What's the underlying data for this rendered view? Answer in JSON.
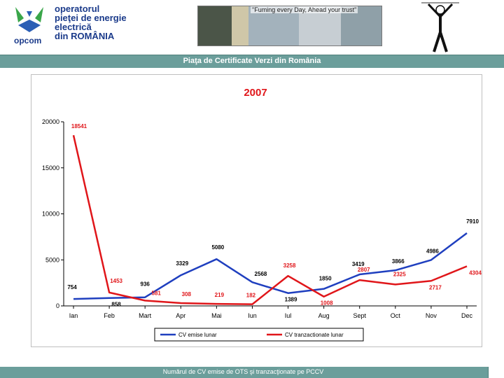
{
  "header": {
    "brand": "opcom",
    "org_lines": [
      "operatorul",
      "pieţei de energie",
      "electrică",
      "din ROMÂNIA"
    ],
    "slogan": "\"Fuming every Day, Ahead your trust\""
  },
  "page_title": "Piaţa de Certificate Verzi din România",
  "footer": {
    "caption": "Numărul de CV emise de OTS şi tranzacţionate pe PCCV"
  },
  "colors": {
    "band": "#6b9e9b",
    "series_blue": "#1f3fbf",
    "series_red": "#e0161a",
    "title_red": "#e0161a"
  },
  "chart_data": {
    "type": "line",
    "title": "2007",
    "categories": [
      "Ian",
      "Feb",
      "Mart",
      "Apr",
      "Mai",
      "Iun",
      "Iul",
      "Aug",
      "Sept",
      "Oct",
      "Nov",
      "Dec"
    ],
    "ylim": [
      0,
      20000
    ],
    "yticks": [
      0,
      5000,
      10000,
      15000,
      20000
    ],
    "legend_position": "bottom",
    "grid": false,
    "series": [
      {
        "name": "CV emise lunar",
        "color": "#1f3fbf",
        "values": [
          754,
          858,
          936,
          3329,
          5080,
          2568,
          1389,
          1850,
          3419,
          3866,
          4986,
          7910
        ]
      },
      {
        "name": "CV tranzactionate lunar",
        "color": "#e0161a",
        "values": [
          18541,
          1453,
          581,
          308,
          219,
          182,
          3258,
          1008,
          2807,
          2325,
          2717,
          4304
        ]
      }
    ]
  }
}
